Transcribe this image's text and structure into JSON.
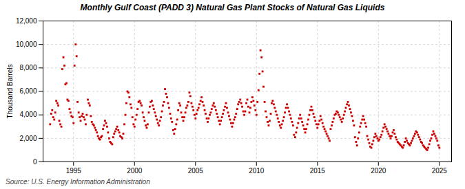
{
  "chart_data": {
    "type": "scatter",
    "title": "Monthly Gulf Coast (PADD 3) Natural Gas Plant Stocks of Natural Gas Liquids",
    "ylabel": "Thousand Barrels",
    "source": "Source: U.S. Energy Information Administration",
    "color": "#cc0000",
    "marker": "square",
    "grid": true,
    "xlim": [
      1992.5,
      2026.0
    ],
    "ylim": [
      0,
      12000
    ],
    "xticks": [
      1995,
      2000,
      2005,
      2010,
      2015,
      2020,
      2025
    ],
    "yticks": [
      0,
      {
        "value": 2000,
        "label": "2,000"
      },
      {
        "value": 4000,
        "label": "4,000"
      },
      {
        "value": 6000,
        "label": "6,000"
      },
      {
        "value": 8000,
        "label": "8,000"
      },
      {
        "value": 10000,
        "label": "10,000"
      },
      {
        "value": 12000,
        "label": "12,000"
      }
    ],
    "x": [
      1993.08,
      1993.17,
      1993.25,
      1993.33,
      1993.42,
      1993.5,
      1993.58,
      1993.67,
      1993.75,
      1993.83,
      1993.92,
      1994.0,
      1994.08,
      1994.17,
      1994.25,
      1994.33,
      1994.42,
      1994.5,
      1994.58,
      1994.67,
      1994.75,
      1994.83,
      1994.92,
      1995.0,
      1995.08,
      1995.17,
      1995.25,
      1995.33,
      1995.42,
      1995.5,
      1995.58,
      1995.67,
      1995.75,
      1995.83,
      1995.92,
      1996.0,
      1996.08,
      1996.17,
      1996.25,
      1996.33,
      1996.42,
      1996.5,
      1996.58,
      1996.67,
      1996.75,
      1996.83,
      1996.92,
      1997.0,
      1997.08,
      1997.17,
      1997.25,
      1997.33,
      1997.42,
      1997.5,
      1997.58,
      1997.67,
      1997.75,
      1997.83,
      1997.92,
      1998.0,
      1998.08,
      1998.17,
      1998.25,
      1998.33,
      1998.42,
      1998.5,
      1998.58,
      1998.67,
      1998.75,
      1998.83,
      1998.92,
      1999.0,
      1999.08,
      1999.17,
      1999.25,
      1999.33,
      1999.42,
      1999.5,
      1999.58,
      1999.67,
      1999.75,
      1999.83,
      1999.92,
      2000.0,
      2000.08,
      2000.17,
      2000.25,
      2000.33,
      2000.42,
      2000.5,
      2000.58,
      2000.67,
      2000.75,
      2000.83,
      2000.92,
      2001.0,
      2001.08,
      2001.17,
      2001.25,
      2001.33,
      2001.42,
      2001.5,
      2001.58,
      2001.67,
      2001.75,
      2001.83,
      2001.92,
      2002.0,
      2002.08,
      2002.17,
      2002.25,
      2002.33,
      2002.42,
      2002.5,
      2002.58,
      2002.67,
      2002.75,
      2002.83,
      2002.92,
      2003.0,
      2003.08,
      2003.17,
      2003.25,
      2003.33,
      2003.42,
      2003.5,
      2003.58,
      2003.67,
      2003.75,
      2003.83,
      2003.92,
      2004.0,
      2004.08,
      2004.17,
      2004.25,
      2004.33,
      2004.42,
      2004.5,
      2004.58,
      2004.67,
      2004.75,
      2004.83,
      2004.92,
      2005.0,
      2005.08,
      2005.17,
      2005.25,
      2005.33,
      2005.42,
      2005.5,
      2005.58,
      2005.67,
      2005.75,
      2005.83,
      2005.92,
      2006.0,
      2006.08,
      2006.17,
      2006.25,
      2006.33,
      2006.42,
      2006.5,
      2006.58,
      2006.67,
      2006.75,
      2006.83,
      2006.92,
      2007.0,
      2007.08,
      2007.17,
      2007.25,
      2007.33,
      2007.42,
      2007.5,
      2007.58,
      2007.67,
      2007.75,
      2007.83,
      2007.92,
      2008.0,
      2008.08,
      2008.17,
      2008.25,
      2008.33,
      2008.42,
      2008.5,
      2008.58,
      2008.67,
      2008.75,
      2008.83,
      2008.92,
      2009.0,
      2009.08,
      2009.17,
      2009.25,
      2009.33,
      2009.42,
      2009.5,
      2009.58,
      2009.67,
      2009.75,
      2009.83,
      2009.92,
      2010.0,
      2010.08,
      2010.17,
      2010.25,
      2010.33,
      2010.42,
      2010.5,
      2010.58,
      2010.67,
      2010.75,
      2010.83,
      2010.92,
      2011.0,
      2011.08,
      2011.17,
      2011.25,
      2011.33,
      2011.42,
      2011.5,
      2011.58,
      2011.67,
      2011.75,
      2011.83,
      2011.92,
      2012.0,
      2012.08,
      2012.17,
      2012.25,
      2012.33,
      2012.42,
      2012.5,
      2012.58,
      2012.67,
      2012.75,
      2012.83,
      2012.92,
      2013.0,
      2013.08,
      2013.17,
      2013.25,
      2013.33,
      2013.42,
      2013.5,
      2013.58,
      2013.67,
      2013.75,
      2013.83,
      2013.92,
      2014.0,
      2014.08,
      2014.17,
      2014.25,
      2014.33,
      2014.42,
      2014.5,
      2014.58,
      2014.67,
      2014.75,
      2014.83,
      2014.92,
      2015.0,
      2015.08,
      2015.17,
      2015.25,
      2015.33,
      2015.42,
      2015.5,
      2015.58,
      2015.67,
      2015.75,
      2015.83,
      2015.92,
      2016.0,
      2016.08,
      2016.17,
      2016.25,
      2016.33,
      2016.42,
      2016.5,
      2016.58,
      2016.67,
      2016.75,
      2016.83,
      2016.92,
      2017.0,
      2017.08,
      2017.17,
      2017.25,
      2017.33,
      2017.42,
      2017.5,
      2017.58,
      2017.67,
      2017.75,
      2017.83,
      2017.92,
      2018.0,
      2018.08,
      2018.17,
      2018.25,
      2018.33,
      2018.42,
      2018.5,
      2018.58,
      2018.67,
      2018.75,
      2018.83,
      2018.92,
      2019.0,
      2019.08,
      2019.17,
      2019.25,
      2019.33,
      2019.42,
      2019.5,
      2019.58,
      2019.67,
      2019.75,
      2019.83,
      2019.92,
      2020.0,
      2020.08,
      2020.17,
      2020.25,
      2020.33,
      2020.42,
      2020.5,
      2020.58,
      2020.67,
      2020.75,
      2020.83,
      2020.92,
      2021.0,
      2021.08,
      2021.17,
      2021.25,
      2021.33,
      2021.42,
      2021.5,
      2021.58,
      2021.67,
      2021.75,
      2021.83,
      2021.92,
      2022.0,
      2022.08,
      2022.17,
      2022.25,
      2022.33,
      2022.42,
      2022.5,
      2022.58,
      2022.67,
      2022.75,
      2022.83,
      2022.92,
      2023.0,
      2023.08,
      2023.17,
      2023.25,
      2023.33,
      2023.42,
      2023.5,
      2023.58,
      2023.67,
      2023.75,
      2023.83,
      2023.92,
      2024.0,
      2024.08,
      2024.17,
      2024.25,
      2024.33,
      2024.42,
      2024.5,
      2024.58,
      2024.67,
      2024.75,
      2024.83,
      2024.92,
      2025.0
    ],
    "values": [
      3200,
      4100,
      4400,
      3800,
      3600,
      4200,
      5200,
      5000,
      4800,
      3500,
      3200,
      3000,
      7900,
      8900,
      8200,
      6600,
      6700,
      5300,
      5200,
      4500,
      4200,
      3900,
      3800,
      3300,
      8200,
      10000,
      9000,
      5100,
      4200,
      3800,
      3500,
      3900,
      4100,
      3800,
      3600,
      3200,
      4000,
      5300,
      5000,
      4800,
      3900,
      3400,
      3200,
      3100,
      2900,
      2700,
      2500,
      2200,
      2000,
      1900,
      2100,
      2200,
      2800,
      3100,
      3500,
      3300,
      3000,
      2500,
      2000,
      1700,
      1600,
      1500,
      2100,
      2400,
      2600,
      2800,
      3000,
      2700,
      2500,
      2200,
      2100,
      2000,
      2400,
      3200,
      4000,
      5000,
      6000,
      5900,
      5500,
      4900,
      4600,
      3800,
      3200,
      3000,
      3600,
      4000,
      4500,
      5100,
      5200,
      5000,
      4800,
      4200,
      3800,
      3500,
      3100,
      2900,
      3200,
      4200,
      4700,
      5100,
      5200,
      4800,
      4500,
      4200,
      3900,
      3600,
      3300,
      3100,
      3500,
      3800,
      4300,
      4800,
      5100,
      6200,
      5800,
      5500,
      5000,
      4600,
      4100,
      3700,
      3400,
      2700,
      2400,
      2800,
      3200,
      3600,
      4400,
      5000,
      4800,
      4200,
      3800,
      3500,
      3800,
      4200,
      4600,
      4800,
      5100,
      5900,
      5600,
      5000,
      4700,
      4400,
      4000,
      3700,
      4100,
      4400,
      4600,
      4900,
      5200,
      5500,
      5100,
      4800,
      4400,
      4100,
      3700,
      3400,
      3700,
      4000,
      4200,
      4500,
      4800,
      5000,
      4700,
      4400,
      4100,
      3800,
      3500,
      3200,
      3500,
      3800,
      4100,
      4400,
      4700,
      5000,
      4600,
      4200,
      3900,
      3600,
      3300,
      3000,
      3300,
      3600,
      3800,
      4100,
      4500,
      4900,
      5100,
      5300,
      5000,
      4700,
      4300,
      4000,
      4300,
      5000,
      5300,
      4700,
      4200,
      4600,
      5100,
      5500,
      5200,
      4800,
      4400,
      4000,
      5100,
      6100,
      7500,
      9500,
      8900,
      7700,
      6400,
      5100,
      4300,
      3800,
      3400,
      3100,
      3500,
      4100,
      5000,
      5200,
      4900,
      4600,
      4300,
      4000,
      3700,
      3400,
      3100,
      2900,
      3200,
      3500,
      3800,
      4200,
      4600,
      4900,
      4600,
      4300,
      4000,
      3700,
      3400,
      3100,
      2300,
      2100,
      2500,
      2900,
      3300,
      3700,
      4000,
      3700,
      3400,
      3100,
      2800,
      2500,
      2800,
      3200,
      3600,
      4000,
      4400,
      4700,
      4400,
      4100,
      3800,
      3500,
      3200,
      2900,
      3200,
      3500,
      3900,
      3600,
      3300,
      3000,
      2800,
      2600,
      2400,
      2200,
      2000,
      1800,
      2800,
      3100,
      3400,
      3700,
      4000,
      4100,
      4300,
      4200,
      4000,
      3800,
      3600,
      3400,
      3700,
      4000,
      4300,
      4600,
      4900,
      5100,
      4800,
      4500,
      4200,
      3900,
      3500,
      3100,
      2100,
      1700,
      1400,
      2000,
      2500,
      3000,
      3300,
      3600,
      3900,
      3600,
      3300,
      3000,
      2200,
      1900,
      1600,
      1300,
      1200,
      1500,
      1800,
      2100,
      2400,
      2200,
      2000,
      1800,
      1900,
      2100,
      2300,
      2600,
      2900,
      3200,
      3000,
      2800,
      2600,
      2400,
      2200,
      2000,
      2200,
      2500,
      2700,
      2400,
      2100,
      1900,
      1700,
      1600,
      1500,
      1400,
      1300,
      1200,
      1400,
      1700,
      2000,
      1800,
      1600,
      1500,
      1400,
      1600,
      1800,
      2000,
      2200,
      2400,
      2600,
      2500,
      2300,
      2100,
      1900,
      1700,
      1600,
      1400,
      1300,
      1200,
      1100,
      1000,
      1200,
      1500,
      1800,
      2000,
      2300,
      2600,
      2400,
      2200,
      2000,
      1800,
      1400,
      1200
    ]
  }
}
